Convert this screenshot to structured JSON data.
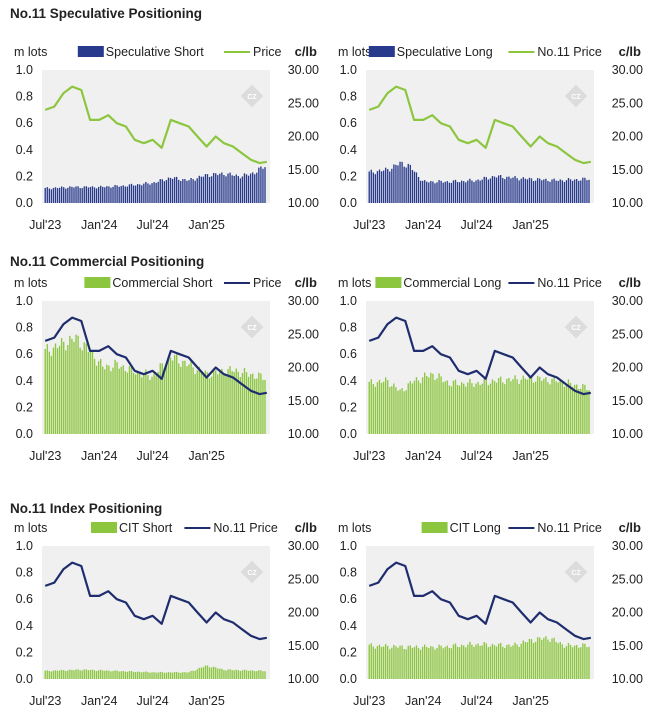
{
  "sections": [
    {
      "title": "No.11 Speculative Positioning"
    },
    {
      "title": "No.11 Commercial Positioning"
    },
    {
      "title": "No.11 Index Positioning"
    }
  ],
  "watermark": {
    "text": "CZ"
  },
  "colors": {
    "bar_navy": "#283a8c",
    "bar_green": "#8cc63f",
    "price_green": "#8cc63f",
    "price_navy": "#1f2d6e",
    "plot_bg": "#f0f0f0"
  },
  "chart_data": [
    {
      "id": "spec-short",
      "type": "bar",
      "left_unit": "m lots",
      "right_unit": "c/lb",
      "y_left_ticks": [
        "1.0",
        "0.8",
        "0.6",
        "0.4",
        "0.2",
        "0.0"
      ],
      "y_right_ticks": [
        "30.00",
        "25.00",
        "20.00",
        "15.00",
        "10.00"
      ],
      "ylim_left": [
        0,
        1.0
      ],
      "ylim_right": [
        10,
        30
      ],
      "x_ticks": [
        "Jul'23",
        "Jan'24",
        "Jul'24",
        "Jan'25"
      ],
      "legend": [
        {
          "label": "Speculative Short",
          "kind": "bar",
          "color": "#283a8c"
        },
        {
          "label": "Price",
          "kind": "line",
          "color": "#8cc63f"
        }
      ],
      "bar_color": "#283a8c",
      "bar_series": {
        "name": "Speculative Short",
        "dates": [
          "2023-07-01",
          "2023-10-01",
          "2024-01-01",
          "2024-04-01",
          "2024-07-01",
          "2024-09-01",
          "2024-11-01",
          "2025-01-01",
          "2025-03-01",
          "2025-05-01",
          "2025-06-15",
          "2025-07-20"
        ],
        "values": [
          0.11,
          0.12,
          0.12,
          0.13,
          0.15,
          0.19,
          0.17,
          0.21,
          0.22,
          0.2,
          0.23,
          0.28
        ]
      },
      "line_series": {
        "name": "Price",
        "color": "#8cc63f",
        "dates": [
          "2023-07-01",
          "2023-08-01",
          "2023-09-01",
          "2023-10-01",
          "2023-11-01",
          "2023-12-01",
          "2024-01-01",
          "2024-02-01",
          "2024-03-01",
          "2024-04-01",
          "2024-05-01",
          "2024-06-01",
          "2024-07-01",
          "2024-08-01",
          "2024-09-01",
          "2024-10-01",
          "2024-11-01",
          "2024-12-01",
          "2025-01-01",
          "2025-02-01",
          "2025-03-01",
          "2025-04-01",
          "2025-05-01",
          "2025-06-01",
          "2025-07-01",
          "2025-07-25"
        ],
        "values": [
          24.0,
          24.5,
          26.5,
          27.5,
          27.0,
          22.5,
          22.5,
          23.2,
          22.0,
          21.5,
          19.5,
          19.0,
          19.5,
          18.3,
          22.5,
          22.0,
          21.5,
          20.0,
          18.5,
          20.0,
          19.0,
          18.5,
          17.5,
          16.5,
          16.0,
          16.2
        ]
      }
    },
    {
      "id": "spec-long",
      "type": "bar",
      "left_unit": "m lots",
      "right_unit": "c/lb",
      "y_left_ticks": [
        "1.0",
        "0.8",
        "0.6",
        "0.4",
        "0.2",
        "0.0"
      ],
      "y_right_ticks": [
        "30.00",
        "25.00",
        "20.00",
        "15.00",
        "10.00"
      ],
      "ylim_left": [
        0,
        1.0
      ],
      "ylim_right": [
        10,
        30
      ],
      "x_ticks": [
        "Jul'23",
        "Jan'24",
        "Jul'24",
        "Jan'25"
      ],
      "legend": [
        {
          "label": "Speculative Long",
          "kind": "bar",
          "color": "#283a8c"
        },
        {
          "label": "No.11 Price",
          "kind": "line",
          "color": "#8cc63f"
        }
      ],
      "bar_color": "#283a8c",
      "bar_series": {
        "name": "Speculative Long",
        "dates": [
          "2023-07-01",
          "2023-09-01",
          "2023-10-15",
          "2023-11-15",
          "2024-01-01",
          "2024-04-01",
          "2024-07-01",
          "2024-09-01",
          "2024-11-01",
          "2025-01-01",
          "2025-04-01",
          "2025-07-20"
        ],
        "values": [
          0.23,
          0.25,
          0.3,
          0.28,
          0.16,
          0.16,
          0.17,
          0.2,
          0.19,
          0.18,
          0.17,
          0.18
        ]
      },
      "line_series": {
        "name": "No.11 Price",
        "color": "#8cc63f",
        "dates": [
          "2023-07-01",
          "2023-08-01",
          "2023-09-01",
          "2023-10-01",
          "2023-11-01",
          "2023-12-01",
          "2024-01-01",
          "2024-02-01",
          "2024-03-01",
          "2024-04-01",
          "2024-05-01",
          "2024-06-01",
          "2024-07-01",
          "2024-08-01",
          "2024-09-01",
          "2024-10-01",
          "2024-11-01",
          "2024-12-01",
          "2025-01-01",
          "2025-02-01",
          "2025-03-01",
          "2025-04-01",
          "2025-05-01",
          "2025-06-01",
          "2025-07-01",
          "2025-07-25"
        ],
        "values": [
          24.0,
          24.5,
          26.5,
          27.5,
          27.0,
          22.5,
          22.5,
          23.2,
          22.0,
          21.5,
          19.5,
          19.0,
          19.5,
          18.3,
          22.5,
          22.0,
          21.5,
          20.0,
          18.5,
          20.0,
          19.0,
          18.5,
          17.5,
          16.5,
          16.0,
          16.2
        ]
      }
    },
    {
      "id": "comm-short",
      "type": "bar",
      "left_unit": "m lots",
      "right_unit": "c/lb",
      "y_left_ticks": [
        "1.0",
        "0.8",
        "0.6",
        "0.4",
        "0.2",
        "0.0"
      ],
      "y_right_ticks": [
        "30.00",
        "25.00",
        "20.00",
        "15.00",
        "10.00"
      ],
      "ylim_left": [
        0,
        1.0
      ],
      "ylim_right": [
        10,
        30
      ],
      "x_ticks": [
        "Jul'23",
        "Jan'24",
        "Jul'24",
        "Jan'25"
      ],
      "legend": [
        {
          "label": "Commercial Short",
          "kind": "bar",
          "color": "#8cc63f"
        },
        {
          "label": "Price",
          "kind": "line",
          "color": "#1f2d6e"
        }
      ],
      "bar_color": "#8cc63f",
      "bar_series": {
        "name": "Commercial Short",
        "dates": [
          "2023-07-01",
          "2023-09-01",
          "2023-10-15",
          "2023-12-01",
          "2024-01-15",
          "2024-03-01",
          "2024-05-01",
          "2024-07-01",
          "2024-09-01",
          "2024-11-01",
          "2025-01-01",
          "2025-04-01",
          "2025-07-20"
        ],
        "values": [
          0.62,
          0.68,
          0.72,
          0.62,
          0.5,
          0.52,
          0.47,
          0.43,
          0.58,
          0.52,
          0.45,
          0.48,
          0.42
        ]
      },
      "line_series": {
        "name": "Price",
        "color": "#1f2d6e",
        "dates": [
          "2023-07-01",
          "2023-08-01",
          "2023-09-01",
          "2023-10-01",
          "2023-11-01",
          "2023-12-01",
          "2024-01-01",
          "2024-02-01",
          "2024-03-01",
          "2024-04-01",
          "2024-05-01",
          "2024-06-01",
          "2024-07-01",
          "2024-08-01",
          "2024-09-01",
          "2024-10-01",
          "2024-11-01",
          "2024-12-01",
          "2025-01-01",
          "2025-02-01",
          "2025-03-01",
          "2025-04-01",
          "2025-05-01",
          "2025-06-01",
          "2025-07-01",
          "2025-07-25"
        ],
        "values": [
          24.0,
          24.5,
          26.5,
          27.5,
          27.0,
          22.5,
          22.5,
          23.2,
          22.0,
          21.5,
          19.5,
          19.0,
          19.5,
          18.3,
          22.5,
          22.0,
          21.5,
          20.0,
          18.5,
          20.0,
          19.0,
          18.5,
          17.5,
          16.5,
          16.0,
          16.2
        ]
      }
    },
    {
      "id": "comm-long",
      "type": "bar",
      "left_unit": "m lots",
      "right_unit": "c/lb",
      "y_left_ticks": [
        "1.0",
        "0.8",
        "0.6",
        "0.4",
        "0.2",
        "0.0"
      ],
      "y_right_ticks": [
        "30.00",
        "25.00",
        "20.00",
        "15.00",
        "10.00"
      ],
      "ylim_left": [
        0,
        1.0
      ],
      "ylim_right": [
        10,
        30
      ],
      "x_ticks": [
        "Jul'23",
        "Jan'24",
        "Jul'24",
        "Jan'25"
      ],
      "legend": [
        {
          "label": "Commercial Long",
          "kind": "bar",
          "color": "#8cc63f"
        },
        {
          "label": "No.11 Price",
          "kind": "line",
          "color": "#1f2d6e"
        }
      ],
      "bar_color": "#8cc63f",
      "bar_series": {
        "name": "Commercial Long",
        "dates": [
          "2023-07-01",
          "2023-09-01",
          "2023-10-15",
          "2023-12-01",
          "2024-02-01",
          "2024-04-01",
          "2024-07-01",
          "2024-09-01",
          "2024-11-01",
          "2025-01-01",
          "2025-04-01",
          "2025-07-20"
        ],
        "values": [
          0.38,
          0.4,
          0.32,
          0.4,
          0.45,
          0.38,
          0.38,
          0.4,
          0.41,
          0.42,
          0.4,
          0.34
        ]
      },
      "line_series": {
        "name": "No.11 Price",
        "color": "#1f2d6e",
        "dates": [
          "2023-07-01",
          "2023-08-01",
          "2023-09-01",
          "2023-10-01",
          "2023-11-01",
          "2023-12-01",
          "2024-01-01",
          "2024-02-01",
          "2024-03-01",
          "2024-04-01",
          "2024-05-01",
          "2024-06-01",
          "2024-07-01",
          "2024-08-01",
          "2024-09-01",
          "2024-10-01",
          "2024-11-01",
          "2024-12-01",
          "2025-01-01",
          "2025-02-01",
          "2025-03-01",
          "2025-04-01",
          "2025-05-01",
          "2025-06-01",
          "2025-07-01",
          "2025-07-25"
        ],
        "values": [
          24.0,
          24.5,
          26.5,
          27.5,
          27.0,
          22.5,
          22.5,
          23.2,
          22.0,
          21.5,
          19.5,
          19.0,
          19.5,
          18.3,
          22.5,
          22.0,
          21.5,
          20.0,
          18.5,
          20.0,
          19.0,
          18.5,
          17.5,
          16.5,
          16.0,
          16.2
        ]
      }
    },
    {
      "id": "cit-short",
      "type": "bar",
      "left_unit": "m lots",
      "right_unit": "c/lb",
      "y_left_ticks": [
        "1.0",
        "0.8",
        "0.6",
        "0.4",
        "0.2",
        "0.0"
      ],
      "y_right_ticks": [
        "30.00",
        "25.00",
        "20.00",
        "15.00",
        "10.00"
      ],
      "ylim_left": [
        0,
        1.0
      ],
      "ylim_right": [
        10,
        30
      ],
      "x_ticks": [
        "Jul'23",
        "Jan'24",
        "Jul'24",
        "Jan'25"
      ],
      "legend": [
        {
          "label": "CIT Short",
          "kind": "bar",
          "color": "#8cc63f"
        },
        {
          "label": "No.11 Price",
          "kind": "line",
          "color": "#1f2d6e"
        }
      ],
      "bar_color": "#8cc63f",
      "bar_series": {
        "name": "CIT Short",
        "dates": [
          "2023-07-01",
          "2023-11-01",
          "2024-03-01",
          "2024-07-01",
          "2024-11-01",
          "2025-01-01",
          "2025-03-01",
          "2025-07-20"
        ],
        "values": [
          0.06,
          0.07,
          0.06,
          0.05,
          0.05,
          0.1,
          0.07,
          0.06
        ]
      },
      "line_series": {
        "name": "No.11 Price",
        "color": "#1f2d6e",
        "dates": [
          "2023-07-01",
          "2023-08-01",
          "2023-09-01",
          "2023-10-01",
          "2023-11-01",
          "2023-12-01",
          "2024-01-01",
          "2024-02-01",
          "2024-03-01",
          "2024-04-01",
          "2024-05-01",
          "2024-06-01",
          "2024-07-01",
          "2024-08-01",
          "2024-09-01",
          "2024-10-01",
          "2024-11-01",
          "2024-12-01",
          "2025-01-01",
          "2025-02-01",
          "2025-03-01",
          "2025-04-01",
          "2025-05-01",
          "2025-06-01",
          "2025-07-01",
          "2025-07-25"
        ],
        "values": [
          24.0,
          24.5,
          26.5,
          27.5,
          27.0,
          22.5,
          22.5,
          23.2,
          22.0,
          21.5,
          19.5,
          19.0,
          19.5,
          18.3,
          22.5,
          22.0,
          21.5,
          20.0,
          18.5,
          20.0,
          19.0,
          18.5,
          17.5,
          16.5,
          16.0,
          16.2
        ]
      }
    },
    {
      "id": "cit-long",
      "type": "bar",
      "left_unit": "m lots",
      "right_unit": "c/lb",
      "y_left_ticks": [
        "1.0",
        "0.8",
        "0.6",
        "0.4",
        "0.2",
        "0.0"
      ],
      "y_right_ticks": [
        "30.00",
        "25.00",
        "20.00",
        "15.00",
        "10.00"
      ],
      "ylim_left": [
        0,
        1.0
      ],
      "ylim_right": [
        10,
        30
      ],
      "x_ticks": [
        "Jul'23",
        "Jan'24",
        "Jul'24",
        "Jan'25"
      ],
      "legend": [
        {
          "label": "CIT Long",
          "kind": "bar",
          "color": "#8cc63f"
        },
        {
          "label": "No.11 Price",
          "kind": "line",
          "color": "#1f2d6e"
        }
      ],
      "bar_color": "#8cc63f",
      "bar_series": {
        "name": "CIT Long",
        "dates": [
          "2023-07-01",
          "2023-11-01",
          "2024-03-01",
          "2024-07-01",
          "2024-11-01",
          "2025-01-01",
          "2025-03-01",
          "2025-05-01",
          "2025-07-20"
        ],
        "values": [
          0.25,
          0.24,
          0.24,
          0.26,
          0.25,
          0.29,
          0.31,
          0.25,
          0.25
        ]
      },
      "line_series": {
        "name": "No.11 Price",
        "color": "#1f2d6e",
        "dates": [
          "2023-07-01",
          "2023-08-01",
          "2023-09-01",
          "2023-10-01",
          "2023-11-01",
          "2023-12-01",
          "2024-01-01",
          "2024-02-01",
          "2024-03-01",
          "2024-04-01",
          "2024-05-01",
          "2024-06-01",
          "2024-07-01",
          "2024-08-01",
          "2024-09-01",
          "2024-10-01",
          "2024-11-01",
          "2024-12-01",
          "2025-01-01",
          "2025-02-01",
          "2025-03-01",
          "2025-04-01",
          "2025-05-01",
          "2025-06-01",
          "2025-07-01",
          "2025-07-25"
        ],
        "values": [
          24.0,
          24.5,
          26.5,
          27.5,
          27.0,
          22.5,
          22.5,
          23.2,
          22.0,
          21.5,
          19.5,
          19.0,
          19.5,
          18.3,
          22.5,
          22.0,
          21.5,
          20.0,
          18.5,
          20.0,
          19.0,
          18.5,
          17.5,
          16.5,
          16.0,
          16.2
        ]
      }
    }
  ]
}
